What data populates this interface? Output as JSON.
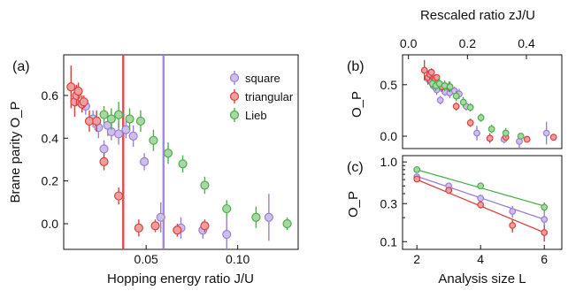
{
  "figure": {
    "colors": {
      "square": "#9b7fd4",
      "triangular": "#d9423f",
      "Lieb": "#4daf4a"
    }
  },
  "panel_a": {
    "label": "(a)",
    "xlabel": "Hopping energy ratio J/U",
    "ylabel": "Brane parity O_P"
  },
  "panel_b": {
    "label": "(b)",
    "ylabel": "O_P",
    "top_xlabel": "Rescaled ratio zJ/U"
  },
  "panel_c": {
    "label": "(c)",
    "ylabel": "O_P",
    "xlabel": "Analysis size L"
  },
  "chart_data": [
    {
      "id": "a",
      "type": "scatter",
      "xlabel": "Hopping energy ratio J/U",
      "ylabel": "Brane parity O_P",
      "xlim": [
        0.005,
        0.133
      ],
      "ylim": [
        -0.12,
        0.79
      ],
      "xticks": [
        0.05,
        0.1
      ],
      "xticklabels": [
        "0.05",
        "0.10"
      ],
      "yticks": [
        0.0,
        0.2,
        0.4,
        0.6
      ],
      "yticklabels": [
        "0.0",
        "0.2",
        "0.4",
        "0.6"
      ],
      "legend": {
        "placement": "top-right",
        "entries": [
          "square",
          "triangular",
          "Lieb"
        ]
      },
      "vlines": [
        {
          "x": 0.0375,
          "series": "triangular"
        },
        {
          "x": 0.0595,
          "series": "square"
        }
      ],
      "series": [
        {
          "name": "square",
          "points": [
            [
              0.017,
              0.55,
              0.04
            ],
            [
              0.021,
              0.49,
              0.04
            ],
            [
              0.024,
              0.45,
              0.05
            ],
            [
              0.027,
              0.35,
              0.04
            ],
            [
              0.029,
              0.46,
              0.05
            ],
            [
              0.031,
              0.43,
              0.04
            ],
            [
              0.035,
              0.42,
              0.05
            ],
            [
              0.039,
              0.44,
              0.04
            ],
            [
              0.043,
              0.41,
              0.05
            ],
            [
              0.049,
              0.29,
              0.04
            ],
            [
              0.058,
              0.03,
              0.07
            ],
            [
              0.069,
              -0.02,
              0.05
            ],
            [
              0.081,
              -0.03,
              0.04
            ],
            [
              0.094,
              -0.05,
              0.08
            ],
            [
              0.117,
              0.03,
              0.11
            ]
          ]
        },
        {
          "name": "triangular",
          "points": [
            [
              0.009,
              0.64,
              0.1
            ],
            [
              0.011,
              0.57,
              0.07
            ],
            [
              0.012,
              0.6,
              0.05
            ],
            [
              0.013,
              0.62,
              0.04
            ],
            [
              0.015,
              0.56,
              0.04
            ],
            [
              0.016,
              0.57,
              0.03
            ],
            [
              0.019,
              0.48,
              0.05
            ],
            [
              0.023,
              0.48,
              0.05
            ],
            [
              0.027,
              0.29,
              0.04
            ],
            [
              0.035,
              0.13,
              0.04
            ],
            [
              0.046,
              -0.02,
              0.04
            ],
            [
              0.055,
              -0.01,
              0.03
            ],
            [
              0.067,
              -0.03,
              0.03
            ],
            [
              0.082,
              -0.01,
              0.03
            ]
          ]
        },
        {
          "name": "Lieb",
          "points": [
            [
              0.027,
              0.51,
              0.04
            ],
            [
              0.031,
              0.49,
              0.05
            ],
            [
              0.035,
              0.51,
              0.06
            ],
            [
              0.041,
              0.49,
              0.05
            ],
            [
              0.047,
              0.48,
              0.05
            ],
            [
              0.054,
              0.39,
              0.05
            ],
            [
              0.062,
              0.33,
              0.05
            ],
            [
              0.07,
              0.28,
              0.04
            ],
            [
              0.082,
              0.18,
              0.04
            ],
            [
              0.094,
              0.07,
              0.04
            ],
            [
              0.11,
              0.03,
              0.05
            ],
            [
              0.127,
              0.0,
              0.03
            ]
          ]
        }
      ]
    },
    {
      "id": "b",
      "type": "scatter",
      "top_xlabel": "Rescaled ratio zJ/U",
      "ylabel": "O_P",
      "xlim": [
        -0.02,
        0.52
      ],
      "ylim": [
        -0.12,
        0.79
      ],
      "xticks": [
        0.0,
        0.2,
        0.4
      ],
      "xticklabels": [
        "0.0",
        "0.2",
        "0.4"
      ],
      "yticks": [
        0.0,
        0.5
      ],
      "yticklabels": [
        "0.0",
        "0.5"
      ],
      "series": [
        {
          "name": "square",
          "points": [
            [
              0.068,
              0.55,
              0.04
            ],
            [
              0.084,
              0.49,
              0.04
            ],
            [
              0.096,
              0.45,
              0.05
            ],
            [
              0.108,
              0.35,
              0.04
            ],
            [
              0.116,
              0.46,
              0.05
            ],
            [
              0.124,
              0.43,
              0.04
            ],
            [
              0.14,
              0.42,
              0.05
            ],
            [
              0.156,
              0.44,
              0.04
            ],
            [
              0.172,
              0.41,
              0.05
            ],
            [
              0.196,
              0.29,
              0.04
            ],
            [
              0.232,
              0.03,
              0.07
            ],
            [
              0.276,
              -0.02,
              0.05
            ],
            [
              0.324,
              -0.03,
              0.04
            ],
            [
              0.376,
              -0.05,
              0.08
            ],
            [
              0.468,
              0.03,
              0.11
            ]
          ]
        },
        {
          "name": "triangular",
          "points": [
            [
              0.054,
              0.64,
              0.1
            ],
            [
              0.066,
              0.57,
              0.07
            ],
            [
              0.072,
              0.6,
              0.05
            ],
            [
              0.078,
              0.62,
              0.04
            ],
            [
              0.09,
              0.56,
              0.04
            ],
            [
              0.096,
              0.57,
              0.03
            ],
            [
              0.114,
              0.48,
              0.05
            ],
            [
              0.138,
              0.48,
              0.05
            ],
            [
              0.162,
              0.29,
              0.04
            ],
            [
              0.21,
              0.13,
              0.04
            ],
            [
              0.276,
              -0.02,
              0.04
            ],
            [
              0.33,
              -0.01,
              0.03
            ],
            [
              0.402,
              -0.03,
              0.03
            ],
            [
              0.492,
              -0.01,
              0.03
            ]
          ]
        },
        {
          "name": "Lieb",
          "points": [
            [
              0.081,
              0.51,
              0.04
            ],
            [
              0.093,
              0.49,
              0.05
            ],
            [
              0.105,
              0.51,
              0.06
            ],
            [
              0.123,
              0.49,
              0.05
            ],
            [
              0.141,
              0.48,
              0.05
            ],
            [
              0.162,
              0.39,
              0.05
            ],
            [
              0.186,
              0.33,
              0.05
            ],
            [
              0.21,
              0.28,
              0.04
            ],
            [
              0.246,
              0.18,
              0.04
            ],
            [
              0.282,
              0.07,
              0.04
            ],
            [
              0.33,
              0.03,
              0.05
            ],
            [
              0.381,
              0.0,
              0.03
            ]
          ]
        }
      ]
    },
    {
      "id": "c",
      "type": "scatter",
      "xlabel": "Analysis size L",
      "ylabel": "O_P",
      "yscale": "log",
      "xlim": [
        1.55,
        6.55
      ],
      "ylim": [
        0.08,
        1.2
      ],
      "xticks": [
        2,
        4,
        6
      ],
      "xticklabels": [
        "2",
        "4",
        "6"
      ],
      "yticks": [
        0.1,
        0.3,
        1.0
      ],
      "yticklabels": [
        "0.1",
        "0.3",
        "1.0"
      ],
      "series": [
        {
          "name": "square",
          "points": [
            [
              2,
              0.65,
              0.05
            ],
            [
              3,
              0.5,
              0.05
            ],
            [
              4,
              0.35,
              0.04
            ],
            [
              5,
              0.24,
              0.04
            ],
            [
              6,
              0.19,
              0.04
            ]
          ],
          "fit": [
            [
              2,
              0.66
            ],
            [
              6,
              0.19
            ]
          ]
        },
        {
          "name": "triangular",
          "points": [
            [
              2,
              0.61,
              0.05
            ],
            [
              3,
              0.44,
              0.04
            ],
            [
              4,
              0.29,
              0.03
            ],
            [
              5,
              0.16,
              0.03
            ],
            [
              6,
              0.13,
              0.03
            ]
          ],
          "fit": [
            [
              2,
              0.6
            ],
            [
              6,
              0.13
            ]
          ]
        },
        {
          "name": "Lieb",
          "points": [
            [
              2,
              0.8,
              0.05
            ],
            [
              4,
              0.5,
              0.04
            ],
            [
              6,
              0.27,
              0.04
            ]
          ],
          "fit": [
            [
              2,
              0.8
            ],
            [
              6,
              0.28
            ]
          ]
        }
      ]
    }
  ]
}
